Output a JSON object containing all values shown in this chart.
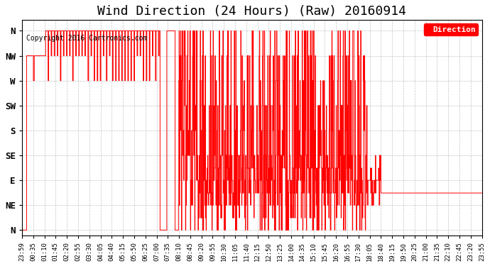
{
  "title": "Wind Direction (24 Hours) (Raw) 20160914",
  "copyright": "Copyright 2016 Cartronics.com",
  "legend_label": "Direction",
  "line_color": "red",
  "background_color": "white",
  "grid_color": "#aaaaaa",
  "ytick_labels": [
    "N",
    "NW",
    "W",
    "SW",
    "S",
    "SE",
    "E",
    "NE",
    "N"
  ],
  "ytick_values": [
    360,
    315,
    270,
    225,
    180,
    135,
    90,
    45,
    0
  ],
  "ylim": [
    -10,
    380
  ],
  "xtick_labels": [
    "23:59",
    "00:35",
    "01:10",
    "01:45",
    "02:20",
    "02:55",
    "03:30",
    "04:05",
    "04:40",
    "05:15",
    "05:50",
    "06:25",
    "07:00",
    "07:35",
    "08:10",
    "08:45",
    "09:20",
    "09:55",
    "10:30",
    "11:05",
    "11:40",
    "12:15",
    "12:50",
    "13:25",
    "14:00",
    "14:35",
    "15:10",
    "15:45",
    "16:20",
    "16:55",
    "17:30",
    "18:05",
    "18:40",
    "19:15",
    "19:50",
    "20:25",
    "21:00",
    "21:35",
    "22:10",
    "22:45",
    "23:20",
    "23:55"
  ],
  "figsize": [
    6.9,
    3.75
  ],
  "dpi": 100,
  "title_fontsize": 13,
  "font_family": "monospace"
}
